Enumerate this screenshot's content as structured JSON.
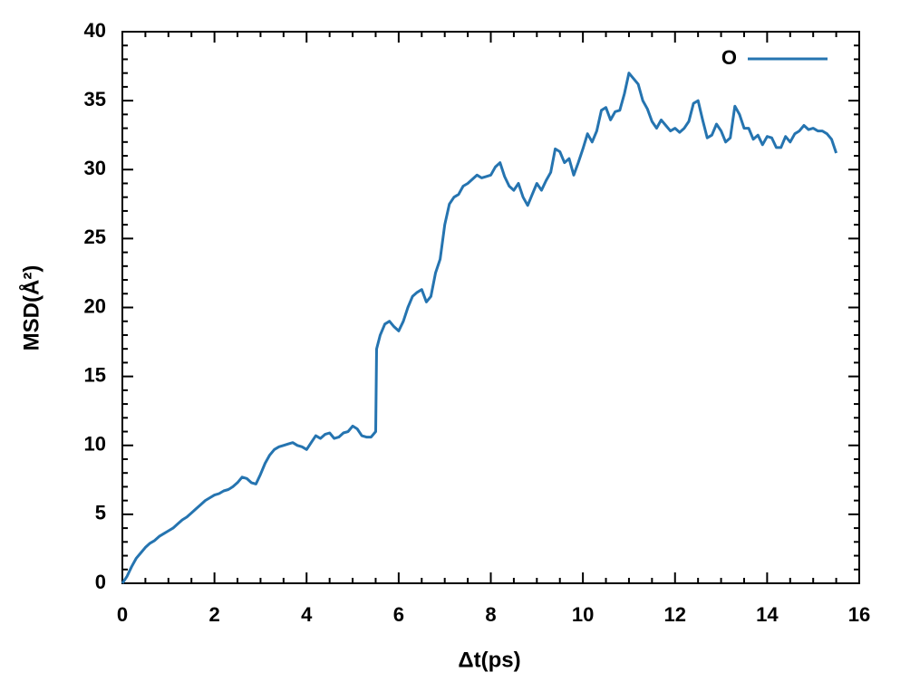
{
  "chart_data": {
    "type": "line",
    "xlabel": "Δt(ps)",
    "ylabel": "MSD(Å²)",
    "xlim": [
      0,
      16
    ],
    "xticks": [
      0,
      2,
      4,
      6,
      8,
      10,
      12,
      14,
      16
    ],
    "ylim": [
      0,
      40
    ],
    "yticks": [
      0,
      5,
      10,
      15,
      20,
      25,
      30,
      35,
      40
    ],
    "legend": "upper right",
    "x": [
      0,
      0.1,
      0.2,
      0.3,
      0.4,
      0.5,
      0.6,
      0.7,
      0.8,
      0.9,
      1.0,
      1.1,
      1.2,
      1.3,
      1.4,
      1.5,
      1.6,
      1.7,
      1.8,
      1.9,
      2.0,
      2.1,
      2.2,
      2.3,
      2.4,
      2.5,
      2.6,
      2.7,
      2.8,
      2.9,
      3.0,
      3.1,
      3.2,
      3.3,
      3.4,
      3.5,
      3.6,
      3.7,
      3.8,
      3.9,
      4.0,
      4.1,
      4.2,
      4.3,
      4.4,
      4.5,
      4.6,
      4.7,
      4.8,
      4.9,
      5.0,
      5.1,
      5.2,
      5.3,
      5.4,
      5.5,
      5.52,
      5.6,
      5.7,
      5.8,
      5.9,
      6.0,
      6.1,
      6.2,
      6.3,
      6.4,
      6.5,
      6.6,
      6.7,
      6.8,
      6.9,
      7.0,
      7.1,
      7.2,
      7.3,
      7.4,
      7.5,
      7.6,
      7.7,
      7.8,
      7.9,
      8.0,
      8.1,
      8.2,
      8.3,
      8.4,
      8.5,
      8.6,
      8.7,
      8.8,
      8.9,
      9.0,
      9.1,
      9.2,
      9.3,
      9.4,
      9.5,
      9.6,
      9.7,
      9.8,
      9.9,
      10.0,
      10.1,
      10.2,
      10.3,
      10.4,
      10.5,
      10.6,
      10.7,
      10.8,
      10.9,
      11.0,
      11.1,
      11.2,
      11.3,
      11.4,
      11.5,
      11.6,
      11.7,
      11.8,
      11.9,
      12.0,
      12.1,
      12.2,
      12.3,
      12.4,
      12.5,
      12.6,
      12.7,
      12.8,
      12.9,
      13.0,
      13.1,
      13.2,
      13.3,
      13.4,
      13.5,
      13.6,
      13.7,
      13.8,
      13.9,
      14.0,
      14.1,
      14.2,
      14.3,
      14.4,
      14.5,
      14.6,
      14.7,
      14.8,
      14.9,
      15.0,
      15.1,
      15.2,
      15.3,
      15.4,
      15.5
    ],
    "series": [
      {
        "name": "O",
        "color": "#2574b0",
        "values": [
          0,
          0.5,
          1.2,
          1.8,
          2.2,
          2.6,
          2.9,
          3.1,
          3.4,
          3.6,
          3.8,
          4.0,
          4.3,
          4.6,
          4.8,
          5.1,
          5.4,
          5.7,
          6.0,
          6.2,
          6.4,
          6.5,
          6.7,
          6.8,
          7.0,
          7.3,
          7.7,
          7.6,
          7.3,
          7.2,
          7.9,
          8.7,
          9.3,
          9.7,
          9.9,
          10.0,
          10.1,
          10.2,
          10.0,
          9.9,
          9.7,
          10.2,
          10.7,
          10.5,
          10.8,
          10.9,
          10.5,
          10.6,
          10.9,
          11.0,
          11.4,
          11.2,
          10.7,
          10.6,
          10.6,
          11.0,
          17.0,
          18.0,
          18.8,
          19.0,
          18.6,
          18.3,
          19.0,
          20.0,
          20.8,
          21.1,
          21.3,
          20.4,
          20.8,
          22.5,
          23.5,
          26.0,
          27.5,
          28.0,
          28.2,
          28.8,
          29.0,
          29.3,
          29.6,
          29.4,
          29.5,
          29.6,
          30.2,
          30.5,
          29.5,
          28.8,
          28.5,
          29.0,
          28.0,
          27.4,
          28.2,
          29.0,
          28.5,
          29.2,
          29.8,
          31.5,
          31.3,
          30.5,
          30.8,
          29.6,
          30.5,
          31.5,
          32.6,
          32.0,
          32.8,
          34.3,
          34.5,
          33.6,
          34.2,
          34.3,
          35.5,
          37.0,
          36.6,
          36.2,
          35.0,
          34.4,
          33.5,
          33.0,
          33.6,
          33.2,
          32.8,
          33.0,
          32.7,
          33.0,
          33.5,
          34.8,
          35.0,
          33.6,
          32.3,
          32.5,
          33.3,
          32.8,
          32.0,
          32.3,
          34.6,
          34.0,
          33.0,
          33.0,
          32.2,
          32.5,
          31.8,
          32.4,
          32.3,
          31.6,
          31.6,
          32.4,
          32.0,
          32.6,
          32.8,
          33.2,
          32.9,
          33.0,
          32.8,
          32.8,
          32.6,
          32.2,
          31.2
        ]
      }
    ]
  }
}
